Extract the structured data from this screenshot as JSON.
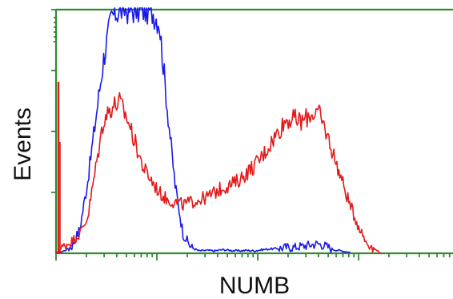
{
  "chart_data": {
    "type": "line",
    "title": "",
    "xlabel": "NUMB",
    "ylabel": "Events",
    "x_scale": "log",
    "xlim": [
      0,
      1
    ],
    "ylim": [
      0,
      1
    ],
    "grid": false,
    "legend": "none",
    "x_major_tick_count": 4,
    "x_minor_tick_count": 9,
    "y_tick_count": 4,
    "colors": {
      "axis": "#2e8b2e",
      "background": "#ffffff"
    },
    "series": [
      {
        "color": "#1a1aee",
        "x": [
          0.0,
          0.02,
          0.04,
          0.06,
          0.08,
          0.1,
          0.12,
          0.14,
          0.16,
          0.18,
          0.2,
          0.22,
          0.24,
          0.26,
          0.28,
          0.3,
          0.32,
          0.34,
          0.36,
          0.38,
          0.4,
          0.42,
          0.44,
          0.46,
          0.48,
          0.5,
          0.52,
          0.54,
          0.56,
          0.58,
          0.6,
          0.62,
          0.64,
          0.66,
          0.68,
          0.7,
          0.72,
          0.74
        ],
        "values": [
          0.0,
          0.01,
          0.03,
          0.1,
          0.3,
          0.55,
          0.8,
          0.97,
          1.0,
          1.0,
          1.0,
          1.0,
          1.0,
          0.95,
          0.6,
          0.28,
          0.08,
          0.025,
          0.01,
          0.012,
          0.01,
          0.015,
          0.012,
          0.01,
          0.012,
          0.01,
          0.015,
          0.018,
          0.02,
          0.025,
          0.025,
          0.03,
          0.035,
          0.04,
          0.03,
          0.015,
          0.01,
          0.005
        ]
      },
      {
        "color": "#e31a1a",
        "x": [
          0.0,
          0.02,
          0.04,
          0.06,
          0.08,
          0.1,
          0.12,
          0.14,
          0.16,
          0.18,
          0.2,
          0.22,
          0.24,
          0.26,
          0.28,
          0.3,
          0.32,
          0.34,
          0.36,
          0.38,
          0.4,
          0.42,
          0.44,
          0.46,
          0.48,
          0.5,
          0.52,
          0.54,
          0.56,
          0.58,
          0.6,
          0.62,
          0.64,
          0.66,
          0.68,
          0.7,
          0.72,
          0.74,
          0.76,
          0.78,
          0.8,
          0.82
        ],
        "values": [
          0.0,
          0.03,
          0.05,
          0.08,
          0.15,
          0.35,
          0.55,
          0.6,
          0.62,
          0.55,
          0.45,
          0.35,
          0.3,
          0.25,
          0.22,
          0.21,
          0.2,
          0.21,
          0.22,
          0.23,
          0.25,
          0.27,
          0.28,
          0.3,
          0.33,
          0.36,
          0.4,
          0.45,
          0.5,
          0.55,
          0.55,
          0.54,
          0.57,
          0.58,
          0.5,
          0.4,
          0.3,
          0.2,
          0.12,
          0.05,
          0.02,
          0.0
        ]
      }
    ]
  }
}
